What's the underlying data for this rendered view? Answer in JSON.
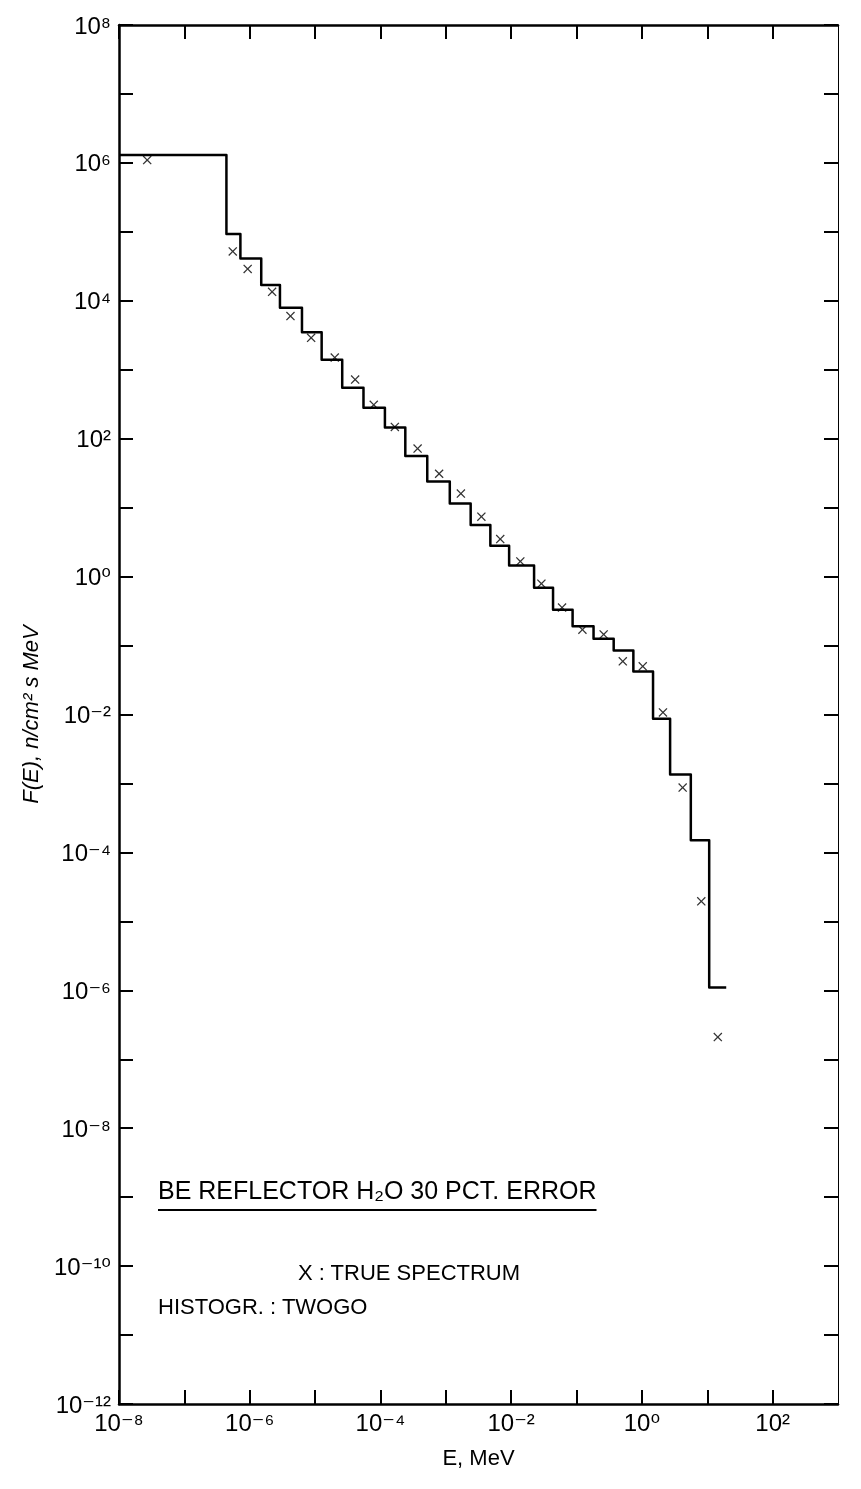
{
  "chart_data": {
    "type": "histogram",
    "xlabel": "E, MeV",
    "ylabel": "F(E), n/cm² s MeV",
    "annotations": [
      "BE REFLECTOR H₂O 30 PCT. ERROR",
      "X : TRUE SPECTRUM",
      "HISTOGR. : TWOGO"
    ],
    "log": "xy",
    "grid": false,
    "xlim": [
      1e-08,
      1000
    ],
    "ylim": [
      1e-12,
      100000000.0
    ],
    "xticks": [
      {
        "value": 1e-08,
        "label": "10⁻⁸"
      },
      {
        "value": 1e-07,
        "label": null
      },
      {
        "value": 1e-06,
        "label": "10⁻⁶"
      },
      {
        "value": 1e-05,
        "label": null
      },
      {
        "value": 0.0001,
        "label": "10⁻⁴"
      },
      {
        "value": 0.001,
        "label": null
      },
      {
        "value": 0.01,
        "label": "10⁻²"
      },
      {
        "value": 0.1,
        "label": null
      },
      {
        "value": 1,
        "label": "10⁰"
      },
      {
        "value": 10,
        "label": null
      },
      {
        "value": 100,
        "label": "10²"
      }
    ],
    "yticks": [
      {
        "value": 1e-12,
        "label": "10⁻¹²"
      },
      {
        "value": 1e-11,
        "label": null
      },
      {
        "value": 1e-10,
        "label": "10⁻¹⁰"
      },
      {
        "value": 1e-09,
        "label": null
      },
      {
        "value": 1e-08,
        "label": "10⁻⁸"
      },
      {
        "value": 1e-07,
        "label": null
      },
      {
        "value": 1e-06,
        "label": "10⁻⁶"
      },
      {
        "value": 1e-05,
        "label": null
      },
      {
        "value": 0.0001,
        "label": "10⁻⁴"
      },
      {
        "value": 0.001,
        "label": null
      },
      {
        "value": 0.01,
        "label": "10⁻²"
      },
      {
        "value": 0.1,
        "label": null
      },
      {
        "value": 1,
        "label": "10⁰"
      },
      {
        "value": 10,
        "label": null
      },
      {
        "value": 100,
        "label": "10²"
      },
      {
        "value": 1000,
        "label": null
      },
      {
        "value": 10000,
        "label": "10⁴"
      },
      {
        "value": 100000,
        "label": null
      },
      {
        "value": 1000000,
        "label": "10⁶"
      },
      {
        "value": 10000000,
        "label": null
      },
      {
        "value": 100000000,
        "label": "10⁸"
      }
    ],
    "series": [
      {
        "color": "#000000",
        "bins": [
          1e-08,
          4.4e-07,
          7.2e-07,
          1.5e-06,
          2.9e-06,
          6.3e-06,
          1.26e-05,
          2.6e-05,
          5.5e-05,
          0.000117,
          0.00024,
          0.00052,
          0.00115,
          0.0024,
          0.0048,
          0.0093,
          0.0224,
          0.0437,
          0.087,
          0.182,
          0.37,
          0.74,
          1.48,
          2.7,
          5.6,
          10.7,
          19.5
        ],
        "values": [
          1300000,
          93000,
          41000,
          17000,
          7900,
          3500,
          1400,
          550,
          280,
          145,
          56,
          24,
          11.5,
          5.6,
          2.8,
          1.45,
          0.69,
          0.33,
          0.19,
          0.126,
          0.085,
          0.042,
          0.0087,
          0.00135,
          0.00015,
          1.1e-06
        ]
      },
      {
        "type": "scatter",
        "color": "#000000",
        "marker": "cross",
        "x": [
          2.7e-08,
          5.5e-07,
          9.3e-07,
          2.2e-06,
          4.2e-06,
          8.7e-06,
          2e-05,
          4.1e-05,
          7.9e-05,
          0.000166,
          0.00037,
          0.00079,
          0.0017,
          0.0035,
          0.0068,
          0.0138,
          0.029,
          0.06,
          0.123,
          0.26,
          0.51,
          1.03,
          2.1,
          4.2,
          8.1,
          14.5
        ],
        "values": [
          1100000,
          52000,
          29000,
          13500,
          6000,
          2900,
          1500,
          720,
          310,
          148,
          72,
          31,
          16,
          7.4,
          3.5,
          1.66,
          0.79,
          0.355,
          0.17,
          0.145,
          0.059,
          0.05,
          0.0107,
          0.00087,
          1.95e-05,
          2.1e-07
        ]
      }
    ]
  }
}
